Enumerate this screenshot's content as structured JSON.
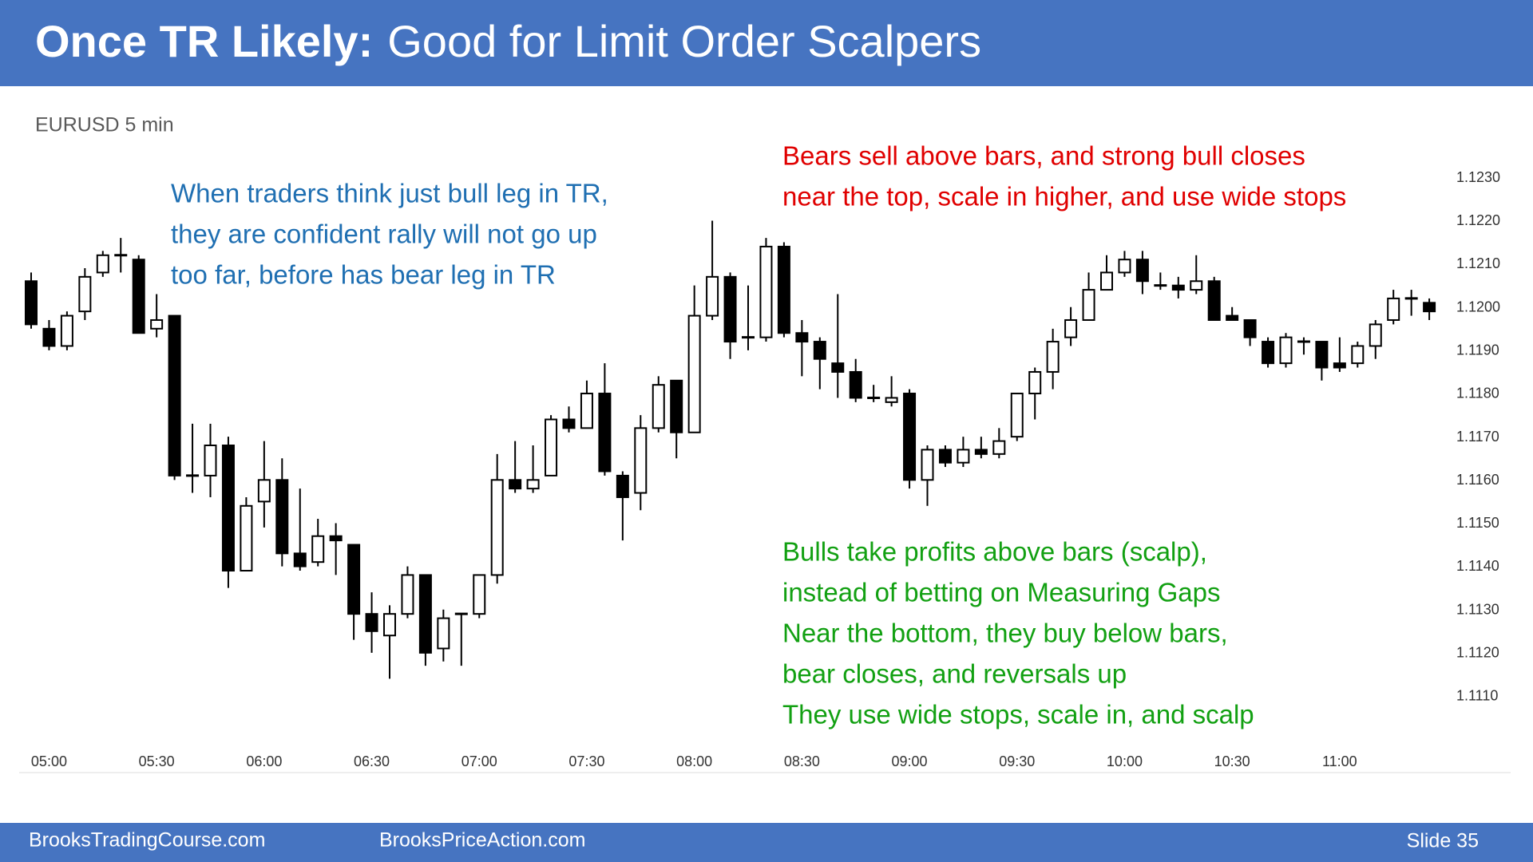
{
  "header": {
    "title_bold": "Once TR Likely:",
    "title": "Good for Limit Order Scalpers"
  },
  "footer": {
    "left": "BrooksTradingCourse.com",
    "middle": "BrooksPriceAction.com",
    "right": "Slide 35"
  },
  "chart_data": {
    "type": "candlestick",
    "subtitle": "EURUSD 5 min",
    "categories": [
      null,
      "05:00",
      null,
      null,
      null,
      null,
      null,
      "05:30",
      null,
      null,
      null,
      null,
      null,
      "06:00",
      null,
      null,
      null,
      null,
      null,
      "06:30",
      null,
      null,
      null,
      null,
      null,
      "07:00",
      null,
      null,
      null,
      null,
      null,
      "07:30",
      null,
      null,
      null,
      null,
      null,
      "08:00",
      null,
      null,
      null,
      null,
      null,
      "08:30",
      null,
      null,
      null,
      null,
      null,
      "09:00",
      null,
      null,
      null,
      null,
      null,
      "09:30",
      null,
      null,
      null,
      null,
      null,
      "10:00",
      null,
      null,
      null,
      null,
      null,
      "10:30",
      null,
      null,
      null,
      null,
      null,
      "11:00",
      null,
      null,
      null,
      null,
      null
    ],
    "open": [
      1.1208,
      1.1197,
      1.1193,
      1.1201,
      1.121,
      1.1214,
      1.1213,
      1.1197,
      1.12,
      1.1163,
      1.1163,
      1.117,
      1.1141,
      1.1157,
      1.1162,
      1.1145,
      1.1143,
      1.1149,
      1.1147,
      1.1131,
      1.1126,
      1.1131,
      1.114,
      1.1123,
      1.1131,
      1.1131,
      1.114,
      1.1162,
      1.116,
      1.1163,
      1.1176,
      1.1174,
      1.1182,
      1.1163,
      1.1159,
      1.1174,
      1.1185,
      1.1173,
      1.12,
      1.1209,
      1.1195,
      1.1195,
      1.1216,
      1.1196,
      1.1194,
      1.1189,
      1.1187,
      1.1181,
      1.118,
      1.1182,
      1.1162,
      1.1169,
      1.1166,
      1.1169,
      1.1168,
      1.1172,
      1.1182,
      1.1187,
      1.1195,
      1.1199,
      1.1206,
      1.121,
      1.1213,
      1.1207,
      1.1207,
      1.1206,
      1.1208,
      1.12,
      1.1199,
      1.1194,
      1.1189,
      1.1194,
      1.1194,
      1.1189,
      1.1189,
      1.1193,
      1.1199,
      1.1204,
      1.1203
    ],
    "high": [
      1.121,
      1.1199,
      1.1201,
      1.1211,
      1.1215,
      1.1218,
      1.1214,
      1.1205,
      1.12,
      1.1175,
      1.1175,
      1.1172,
      1.1158,
      1.1171,
      1.1167,
      1.116,
      1.1153,
      1.1152,
      1.1147,
      1.1136,
      1.1133,
      1.1142,
      1.114,
      1.1132,
      1.1131,
      1.114,
      1.1168,
      1.1171,
      1.117,
      1.1177,
      1.1179,
      1.1185,
      1.1189,
      1.1164,
      1.1177,
      1.1186,
      1.1185,
      1.1207,
      1.1222,
      1.121,
      1.1207,
      1.1218,
      1.1217,
      1.1199,
      1.1195,
      1.1205,
      1.119,
      1.1184,
      1.1186,
      1.1183,
      1.117,
      1.117,
      1.1172,
      1.1172,
      1.1174,
      1.1182,
      1.1188,
      1.1197,
      1.1202,
      1.121,
      1.1214,
      1.1215,
      1.1215,
      1.121,
      1.1209,
      1.1214,
      1.1209,
      1.1202,
      1.1199,
      1.1195,
      1.1196,
      1.1195,
      1.1194,
      1.1195,
      1.1194,
      1.1199,
      1.1206,
      1.1206,
      1.1204
    ],
    "low": [
      1.1197,
      1.1192,
      1.1192,
      1.1199,
      1.1209,
      1.121,
      1.1196,
      1.1195,
      1.1162,
      1.1159,
      1.1158,
      1.1137,
      1.1141,
      1.1151,
      1.1142,
      1.1141,
      1.1142,
      1.114,
      1.1125,
      1.1122,
      1.1116,
      1.113,
      1.1119,
      1.112,
      1.1119,
      1.113,
      1.1138,
      1.1159,
      1.1159,
      1.1163,
      1.1173,
      1.1174,
      1.1163,
      1.1148,
      1.1155,
      1.1173,
      1.1167,
      1.1173,
      1.1199,
      1.119,
      1.1192,
      1.1194,
      1.1195,
      1.1186,
      1.1183,
      1.1181,
      1.118,
      1.118,
      1.1179,
      1.116,
      1.1156,
      1.1165,
      1.1165,
      1.1167,
      1.1167,
      1.1171,
      1.1176,
      1.1183,
      1.1193,
      1.1199,
      1.1206,
      1.1209,
      1.1205,
      1.1206,
      1.1204,
      1.1205,
      1.1199,
      1.1199,
      1.1193,
      1.1188,
      1.1188,
      1.1191,
      1.1185,
      1.1187,
      1.1188,
      1.119,
      1.1198,
      1.12,
      1.1199
    ],
    "close": [
      1.1198,
      1.1193,
      1.12,
      1.1209,
      1.1214,
      1.1214,
      1.1196,
      1.1199,
      1.1163,
      1.1163,
      1.117,
      1.1141,
      1.1156,
      1.1162,
      1.1145,
      1.1142,
      1.1149,
      1.1148,
      1.1131,
      1.1127,
      1.1131,
      1.114,
      1.1122,
      1.113,
      1.1131,
      1.114,
      1.1162,
      1.116,
      1.1162,
      1.1176,
      1.1174,
      1.1182,
      1.1164,
      1.1158,
      1.1174,
      1.1184,
      1.1173,
      1.12,
      1.1209,
      1.1194,
      1.1195,
      1.1216,
      1.1196,
      1.1194,
      1.119,
      1.1187,
      1.1181,
      1.1181,
      1.1181,
      1.1162,
      1.1169,
      1.1166,
      1.1169,
      1.1168,
      1.1171,
      1.1182,
      1.1187,
      1.1194,
      1.1199,
      1.1206,
      1.121,
      1.1213,
      1.1208,
      1.1207,
      1.1206,
      1.1208,
      1.1199,
      1.1199,
      1.1195,
      1.1189,
      1.1195,
      1.1194,
      1.1188,
      1.1188,
      1.1193,
      1.1198,
      1.1204,
      1.1204,
      1.1201
    ],
    "up_color": "#ffffff",
    "down_color": "#000000",
    "edge_color": "#000000",
    "ylim": [
      1.11,
      1.124
    ],
    "yticks": [
      {
        "value": 1.111,
        "label": "1.1110"
      },
      {
        "value": 1.112,
        "label": "1.1120"
      },
      {
        "value": 1.113,
        "label": "1.1130"
      },
      {
        "value": 1.114,
        "label": "1.1140"
      },
      {
        "value": 1.115,
        "label": "1.1150"
      },
      {
        "value": 1.116,
        "label": "1.1160"
      },
      {
        "value": 1.117,
        "label": "1.1170"
      },
      {
        "value": 1.118,
        "label": "1.1180"
      },
      {
        "value": 1.119,
        "label": "1.1190"
      },
      {
        "value": 1.12,
        "label": "1.1200"
      },
      {
        "value": 1.121,
        "label": "1.1210"
      },
      {
        "value": 1.122,
        "label": "1.1220"
      },
      {
        "value": 1.123,
        "label": "1.1230"
      }
    ],
    "grid": false,
    "annotations": [
      {
        "color": "#1f6fb2",
        "lines": [
          "When traders think just bull leg in TR,",
          "they are confident rally will not go up",
          "too far, before has bear leg in TR"
        ]
      },
      {
        "color": "#e00000",
        "lines": [
          "Bears sell above bars, and strong bull closes",
          "near the top, scale in higher, and use wide stops"
        ]
      },
      {
        "color": "#12a012",
        "lines": [
          "Bulls take profits above bars (scalp),",
          "instead of betting on Measuring Gaps",
          "Near the bottom, they buy below bars,",
          "bear closes, and reversals up",
          "They use wide stops, scale in, and scalp"
        ]
      }
    ]
  }
}
